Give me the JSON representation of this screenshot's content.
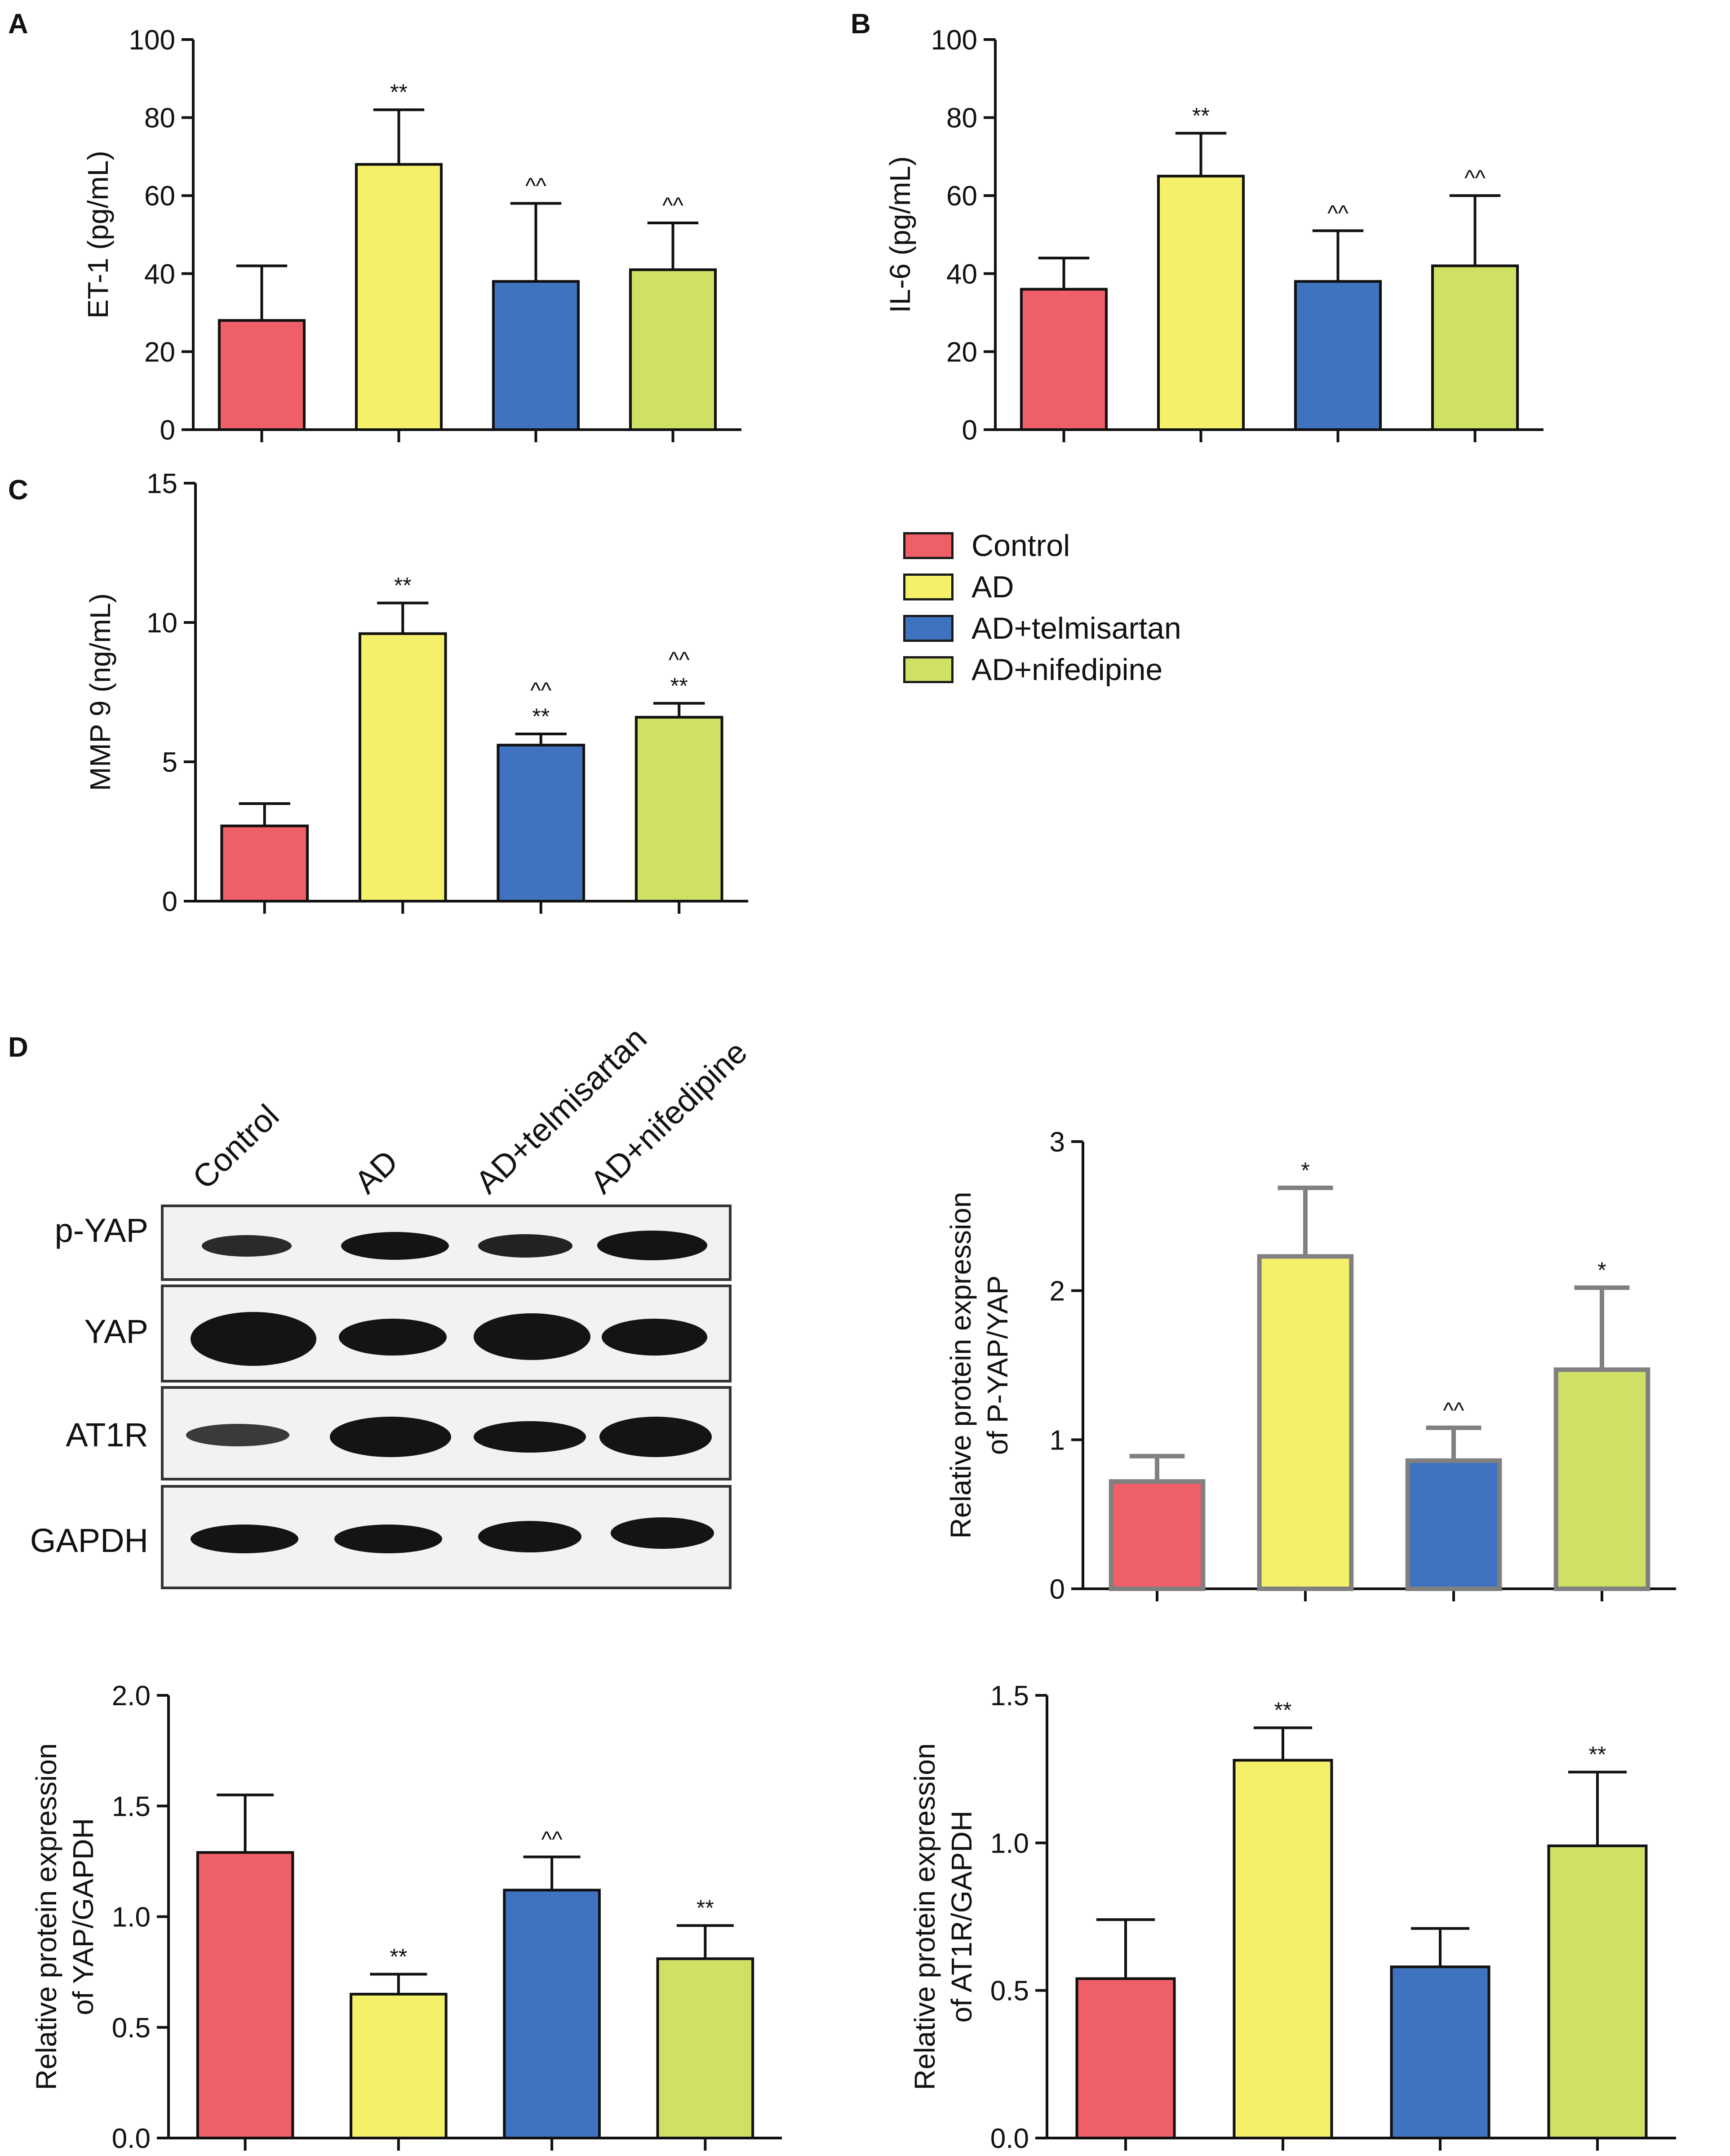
{
  "groups": [
    "Control",
    "AD",
    "AD+telmisartan",
    "AD+nifedipine"
  ],
  "colors": {
    "Control": "#ef5f68",
    "AD": "#f5f06a",
    "AD+telmisartan": "#3f73bf",
    "AD+nifedipine": "#cfe065",
    "axis": "#111111",
    "grey_border": "#808080"
  },
  "legend": {
    "items": [
      "Control",
      "AD",
      "AD+telmisartan",
      "AD+nifedipine"
    ]
  },
  "panel_letters": {
    "A": "A",
    "B": "B",
    "C": "C",
    "D": "D"
  },
  "blot": {
    "lanes": [
      "Control",
      "AD",
      "AD+telmisartan",
      "AD+nifedipine"
    ],
    "bands": [
      "p-YAP",
      "YAP",
      "AT1R",
      "GAPDH"
    ]
  },
  "chart_data": [
    {
      "id": "A",
      "type": "bar",
      "categories": [
        "Control",
        "AD",
        "AD+telmisartan",
        "AD+nifedipine"
      ],
      "values": [
        28,
        68,
        38,
        41
      ],
      "errors": [
        14,
        14,
        20,
        12
      ],
      "annotations": [
        "",
        "**",
        "^^",
        "^^"
      ],
      "ylabel": "ET-1 (pg/mL)",
      "ylim": [
        0,
        100
      ],
      "yticks": [
        0,
        20,
        40,
        60,
        80,
        100
      ],
      "ytick_labels": [
        "0",
        "20",
        "40",
        "60",
        "80",
        "100"
      ]
    },
    {
      "id": "B",
      "type": "bar",
      "categories": [
        "Control",
        "AD",
        "AD+telmisartan",
        "AD+nifedipine"
      ],
      "values": [
        36,
        65,
        38,
        42
      ],
      "errors": [
        8,
        11,
        13,
        18
      ],
      "annotations": [
        "",
        "**",
        "^^",
        "^^"
      ],
      "ylabel": "IL-6 (pg/mL)",
      "ylim": [
        0,
        100
      ],
      "yticks": [
        0,
        20,
        40,
        60,
        80,
        100
      ],
      "ytick_labels": [
        "0",
        "20",
        "40",
        "60",
        "80",
        "100"
      ]
    },
    {
      "id": "C",
      "type": "bar",
      "categories": [
        "Control",
        "AD",
        "AD+telmisartan",
        "AD+nifedipine"
      ],
      "values": [
        2.7,
        9.6,
        5.6,
        6.6
      ],
      "errors": [
        0.8,
        1.1,
        0.4,
        0.5
      ],
      "annotations": [
        "",
        "**",
        "^^\n**",
        "^^\n**"
      ],
      "ylabel": "MMP 9 (ng/mL)",
      "ylim": [
        0,
        15
      ],
      "yticks": [
        0,
        5,
        10,
        15
      ],
      "ytick_labels": [
        "0",
        "5",
        "10",
        "15"
      ]
    },
    {
      "id": "D-pYAP",
      "type": "bar",
      "categories": [
        "Control",
        "AD",
        "AD+telmisartan",
        "AD+nifedipine"
      ],
      "values": [
        0.72,
        2.23,
        0.86,
        1.47
      ],
      "errors": [
        0.17,
        0.46,
        0.22,
        0.55
      ],
      "annotations": [
        "",
        "*",
        "^^",
        "*"
      ],
      "ylabel": "Relative protein expression\nof P-YAP/YAP",
      "ylim": [
        0,
        3
      ],
      "yticks": [
        0,
        1,
        2,
        3
      ],
      "ytick_labels": [
        "0",
        "1",
        "2",
        "3"
      ],
      "bar_border": "grey"
    },
    {
      "id": "D-YAP",
      "type": "bar",
      "categories": [
        "Control",
        "AD",
        "AD+telmisartan",
        "AD+nifedipine"
      ],
      "values": [
        1.29,
        0.65,
        1.12,
        0.81
      ],
      "errors": [
        0.26,
        0.09,
        0.15,
        0.15
      ],
      "annotations": [
        "",
        "**",
        "^^",
        "**"
      ],
      "ylabel": "Relative protein expression\nof YAP/GAPDH",
      "ylim": [
        0,
        2
      ],
      "yticks": [
        0,
        0.5,
        1,
        1.5,
        2
      ],
      "ytick_labels": [
        "0.0",
        "0.5",
        "1.0",
        "1.5",
        "2.0"
      ]
    },
    {
      "id": "D-AT1R",
      "type": "bar",
      "categories": [
        "Control",
        "AD",
        "AD+telmisartan",
        "AD+nifedipine"
      ],
      "values": [
        0.54,
        1.28,
        0.58,
        0.99
      ],
      "errors": [
        0.2,
        0.11,
        0.13,
        0.25
      ],
      "annotations": [
        "",
        "**",
        "",
        "**"
      ],
      "ylabel": "Relative protein expression\nof AT1R/GAPDH",
      "ylim": [
        0,
        1.5
      ],
      "yticks": [
        0,
        0.5,
        1,
        1.5
      ],
      "ytick_labels": [
        "0.0",
        "0.5",
        "1.0",
        "1.5"
      ]
    }
  ]
}
